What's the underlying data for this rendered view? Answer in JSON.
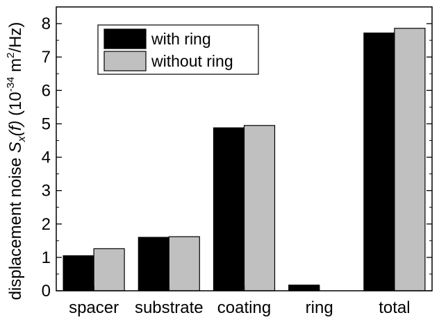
{
  "chart_data": {
    "type": "bar",
    "categories": [
      "spacer",
      "substrate",
      "coating",
      "ring",
      "total"
    ],
    "series": [
      {
        "name": "with ring",
        "color": "#000000",
        "values": [
          1.05,
          1.6,
          4.88,
          0.17,
          7.72
        ]
      },
      {
        "name": "without ring",
        "color": "#c0c0c0",
        "values": [
          1.26,
          1.62,
          4.95,
          0.0,
          7.86
        ]
      }
    ],
    "ylabel": {
      "prefix": "displacement noise ",
      "symbol": "S",
      "subscript": "x",
      "arg": "(f)",
      "unit_open": " (10",
      "exp1": "-34",
      "unit_mid": " m",
      "exp2": "2",
      "unit_close": "/Hz)"
    },
    "ylim": [
      0,
      8.5
    ],
    "yticks": [
      0,
      1,
      2,
      3,
      4,
      5,
      6,
      7,
      8
    ],
    "legend_position": "top-left",
    "grid": false
  }
}
